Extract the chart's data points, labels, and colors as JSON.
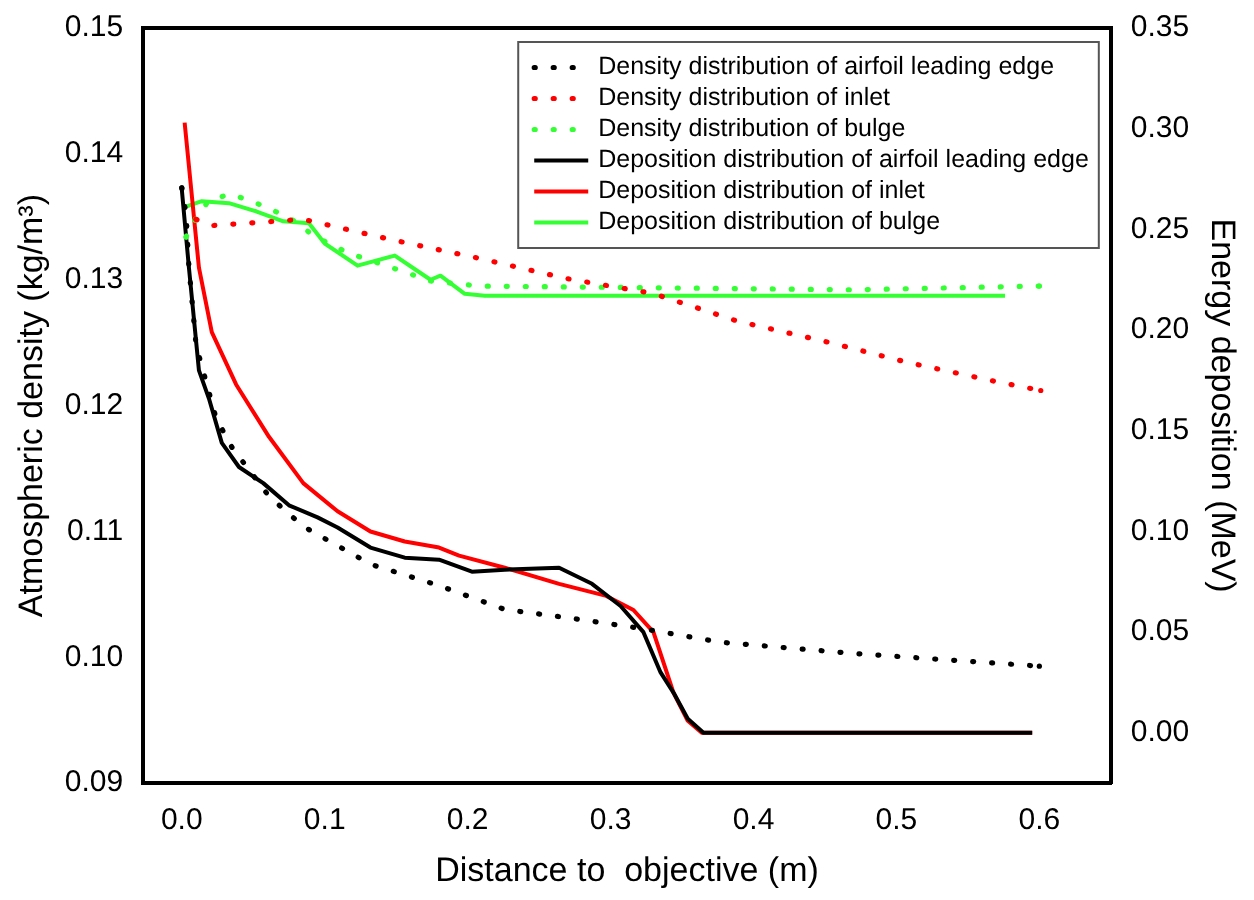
{
  "chart_data": {
    "type": "line",
    "xlabel": "Distance to  objective (m)",
    "ylabel": "Atmospheric density (kg/m³)",
    "y2label": "Energy deposition (MeV)",
    "xlim": [
      -0.027,
      0.65
    ],
    "xticks": [
      {
        "value": 0,
        "label": "0.0"
      },
      {
        "value": 0.1,
        "label": "0.1"
      },
      {
        "value": 0.2,
        "label": "0.2"
      },
      {
        "value": 0.3,
        "label": "0.3"
      },
      {
        "value": 0.4,
        "label": "0.4"
      },
      {
        "value": 0.5,
        "label": "0.5"
      },
      {
        "value": 0.6,
        "label": "0.6"
      }
    ],
    "ylim": [
      0.09,
      0.15
    ],
    "yticks": [
      {
        "value": 0.09,
        "label": "0.09"
      },
      {
        "value": 0.1,
        "label": "0.10"
      },
      {
        "value": 0.11,
        "label": "0.11"
      },
      {
        "value": 0.12,
        "label": "0.12"
      },
      {
        "value": 0.13,
        "label": "0.13"
      },
      {
        "value": 0.14,
        "label": "0.14"
      },
      {
        "value": 0.15,
        "label": "0.15"
      }
    ],
    "y2lim": [
      -0.025,
      0.35
    ],
    "y2ticks": [
      {
        "value": 0,
        "label": "0.00"
      },
      {
        "value": 0.05,
        "label": "0.05"
      },
      {
        "value": 0.1,
        "label": "0.10"
      },
      0.15,
      {
        "value": 0.2,
        "label": "0.20"
      },
      0.25,
      {
        "value": 0.3,
        "label": "0.30"
      },
      0.35
    ],
    "grid": false,
    "legend": "top right",
    "marker": "none",
    "series": [
      {
        "name": "Density distribution of airfoil leading edge",
        "color": "#000000",
        "line_style": "dotted",
        "x": [
          0.0,
          0.003,
          0.005,
          0.01,
          0.024,
          0.035,
          0.061,
          0.085,
          0.132,
          0.18,
          0.226,
          0.273,
          0.321,
          0.377,
          0.471,
          0.6
        ],
        "values": [
          0.1373,
          0.1352,
          0.131,
          0.1248,
          0.119,
          0.1167,
          0.1128,
          0.1104,
          0.1074,
          0.1057,
          0.1038,
          0.1031,
          0.1023,
          0.1012,
          0.1003,
          0.0993
        ]
      },
      {
        "name": "Density distribution of inlet",
        "color": "#ff0000",
        "line_style": "dotted",
        "x": [
          0.01,
          0.021,
          0.085,
          0.146,
          0.208,
          0.269,
          0.33,
          0.389,
          0.45,
          0.509,
          0.57,
          0.601
        ],
        "values": [
          0.1348,
          0.1343,
          0.1348,
          0.1332,
          0.1317,
          0.1301,
          0.1289,
          0.1267,
          0.1251,
          0.1234,
          0.1219,
          0.1212
        ]
      },
      {
        "name": "Density distribution of bulge",
        "color": "#33ff33",
        "line_style": "dotted",
        "x": [
          0.003,
          0.01,
          0.019,
          0.034,
          0.05,
          0.066,
          0.08,
          0.092,
          0.117,
          0.146,
          0.174,
          0.208,
          0.471,
          0.6
        ],
        "values": [
          0.1334,
          0.1349,
          0.1363,
          0.1368,
          0.1362,
          0.1354,
          0.1346,
          0.1335,
          0.1321,
          0.131,
          0.1299,
          0.1295,
          0.1292,
          0.1295
        ]
      },
      {
        "name": "Deposition distribution of airfoil leading edge",
        "color": "#000000",
        "line_style": "solid",
        "axis": "y2",
        "x": [
          0.0,
          0.005,
          0.012,
          0.019,
          0.028,
          0.04,
          0.057,
          0.075,
          0.095,
          0.109,
          0.132,
          0.156,
          0.18,
          0.203,
          0.226,
          0.264,
          0.287,
          0.307,
          0.323,
          0.335,
          0.344,
          0.354,
          0.365,
          0.595
        ],
        "values": [
          0.27,
          0.231,
          0.18,
          0.166,
          0.144,
          0.132,
          0.124,
          0.113,
          0.107,
          0.102,
          0.092,
          0.087,
          0.086,
          0.08,
          0.081,
          0.082,
          0.074,
          0.063,
          0.05,
          0.03,
          0.02,
          0.007,
          0,
          0
        ]
      },
      {
        "name": "Deposition distribution of inlet",
        "color": "#ff0000",
        "line_style": "solid",
        "axis": "y2",
        "x": [
          0.002,
          0.012,
          0.021,
          0.038,
          0.061,
          0.085,
          0.109,
          0.132,
          0.156,
          0.18,
          0.194,
          0.226,
          0.264,
          0.297,
          0.316,
          0.33,
          0.344,
          0.354,
          0.364,
          0.595
        ],
        "values": [
          0.303,
          0.231,
          0.199,
          0.173,
          0.147,
          0.124,
          0.11,
          0.1,
          0.095,
          0.092,
          0.088,
          0.082,
          0.074,
          0.068,
          0.061,
          0.05,
          0.02,
          0.006,
          0,
          0
        ]
      },
      {
        "name": "Deposition distribution of bulge",
        "color": "#33ff33",
        "line_style": "solid",
        "axis": "y2",
        "x": [
          0.002,
          0.014,
          0.033,
          0.052,
          0.071,
          0.089,
          0.1,
          0.123,
          0.149,
          0.174,
          0.181,
          0.198,
          0.212,
          0.576
        ],
        "values": [
          0.261,
          0.264,
          0.263,
          0.259,
          0.254,
          0.253,
          0.243,
          0.232,
          0.237,
          0.225,
          0.227,
          0.218,
          0.217,
          0.217
        ]
      }
    ]
  }
}
